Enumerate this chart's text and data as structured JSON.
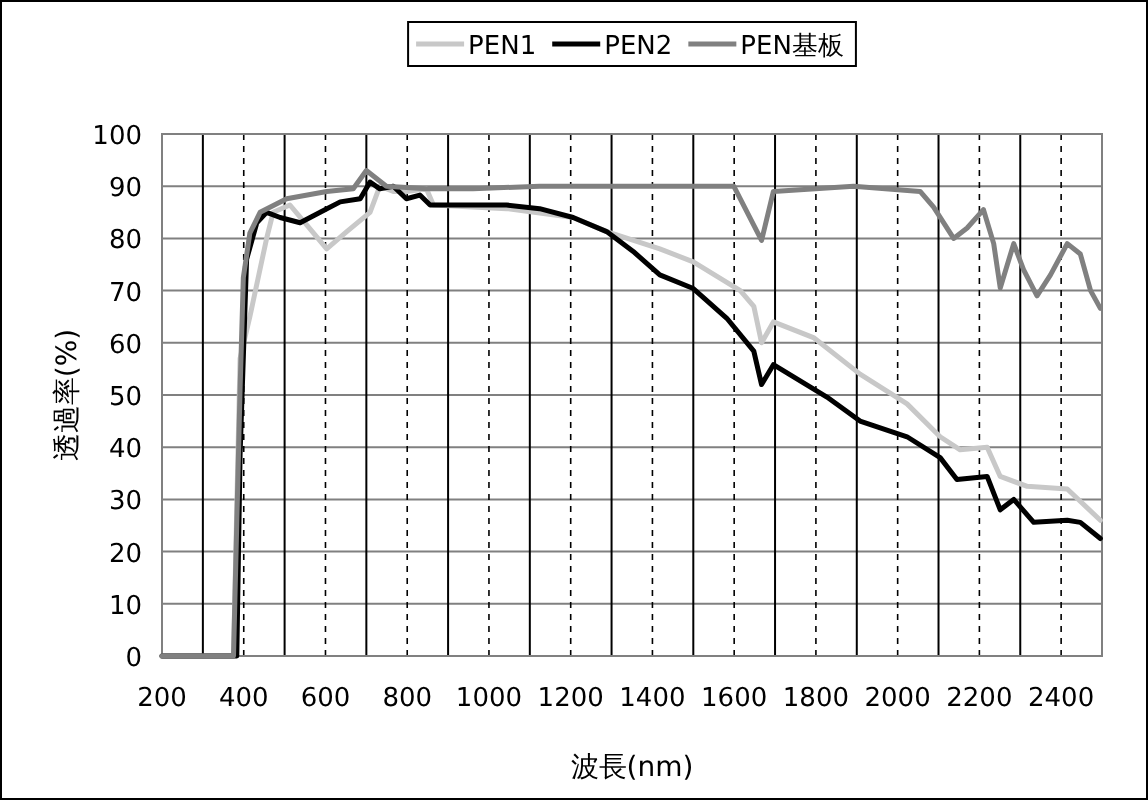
{
  "chart_data": {
    "type": "line",
    "xlabel": "波長(nm)",
    "ylabel": "透過率(%)",
    "xlim": [
      200,
      2500
    ],
    "ylim": [
      0,
      100
    ],
    "xticks": [
      200,
      400,
      600,
      800,
      1000,
      1200,
      1400,
      1600,
      1800,
      2000,
      2200,
      2400
    ],
    "yticks": [
      0,
      10,
      20,
      30,
      40,
      50,
      60,
      70,
      80,
      90,
      100
    ],
    "grid": true,
    "legend": "top",
    "marker": "none",
    "line_style": "solid",
    "series": [
      {
        "name": "PEN1",
        "color": "#c8c8c8",
        "x": [
          200,
          375,
          391,
          415,
          456,
          472,
          513,
          554,
          603,
          652,
          709,
          733,
          766,
          798,
          847,
          864,
          1043,
          1206,
          1288,
          1418,
          1500,
          1615,
          1648,
          1667,
          1696,
          1794,
          1908,
          2023,
          2104,
          2153,
          2219,
          2251,
          2317,
          2415,
          2496
        ],
        "values": [
          0,
          0,
          57,
          65,
          80,
          85,
          86.4,
          82.6,
          78,
          81.3,
          85,
          90,
          89,
          89,
          89.5,
          86.4,
          85.7,
          84,
          81.3,
          78,
          75.5,
          70,
          67,
          60,
          64,
          61,
          54,
          48.3,
          42,
          39.5,
          40,
          34.4,
          32.5,
          32,
          26
        ]
      },
      {
        "name": "PEN2",
        "color": "#000000",
        "x": [
          200,
          383,
          391,
          407,
          432,
          456,
          489,
          538,
          587,
          636,
          685,
          709,
          733,
          766,
          798,
          831,
          856,
          1043,
          1124,
          1206,
          1288,
          1353,
          1418,
          1500,
          1582,
          1648,
          1667,
          1696,
          1827,
          1908,
          2023,
          2104,
          2145,
          2219,
          2251,
          2284,
          2333,
          2415,
          2447,
          2496
        ],
        "values": [
          0,
          0,
          38.5,
          76,
          83,
          85,
          84,
          83,
          85,
          87,
          87.6,
          90.8,
          89.5,
          90,
          87.6,
          88.3,
          86.4,
          86.4,
          85.7,
          84,
          81.3,
          77.5,
          73,
          70.4,
          64.7,
          58.4,
          52,
          55.8,
          49.6,
          45,
          42,
          38,
          33.8,
          34.4,
          28,
          30,
          25.6,
          26,
          25.6,
          22.5
        ]
      },
      {
        "name": "PEN基板",
        "color": "#808080",
        "x": [
          200,
          375,
          391,
          399,
          415,
          440,
          505,
          603,
          668,
          700,
          749,
          847,
          961,
          1124,
          1418,
          1599,
          1667,
          1696,
          1892,
          2055,
          2088,
          2137,
          2170,
          2210,
          2235,
          2251,
          2284,
          2308,
          2341,
          2374,
          2415,
          2447,
          2472,
          2496
        ],
        "values": [
          0,
          0,
          51,
          72.5,
          81,
          85,
          87.6,
          89,
          89.5,
          93,
          90,
          89.5,
          89.5,
          90,
          90,
          90,
          79.6,
          89,
          90,
          89,
          86,
          80,
          82,
          85.5,
          79,
          70.5,
          79,
          74,
          69,
          73,
          79,
          77,
          70,
          66.6
        ]
      }
    ]
  }
}
